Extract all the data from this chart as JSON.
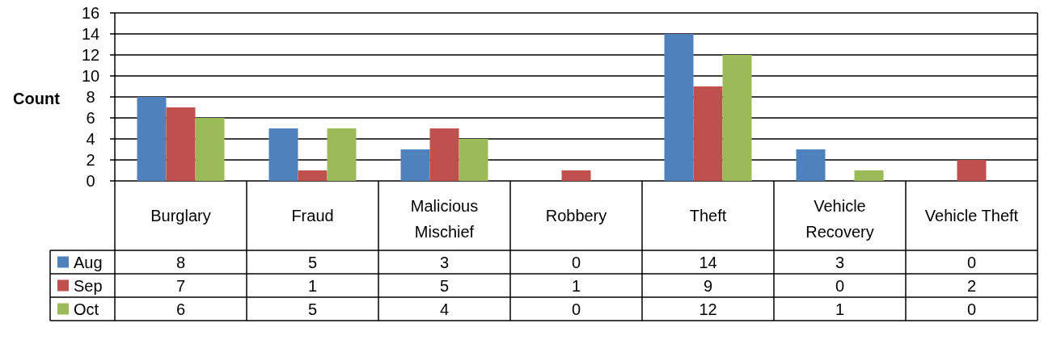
{
  "chart_data": {
    "type": "bar",
    "ylabel": "Count",
    "categories": [
      "Burglary",
      "Fraud",
      "Malicious Mischief",
      "Robbery",
      "Theft",
      "Vehicle Recovery",
      "Vehicle Theft"
    ],
    "series": [
      {
        "name": "Aug",
        "color": "#4f81bd",
        "values": [
          8,
          5,
          3,
          0,
          14,
          3,
          0
        ]
      },
      {
        "name": "Sep",
        "color": "#c0504d",
        "values": [
          7,
          1,
          5,
          1,
          9,
          0,
          2
        ]
      },
      {
        "name": "Oct",
        "color": "#9bbb59",
        "values": [
          6,
          5,
          4,
          0,
          12,
          1,
          0
        ]
      }
    ],
    "ylim": [
      0,
      16
    ],
    "yticks": [
      0,
      2,
      4,
      6,
      8,
      10,
      12,
      14,
      16
    ],
    "grid": "y",
    "legend": "bottom",
    "data_labels": true
  }
}
